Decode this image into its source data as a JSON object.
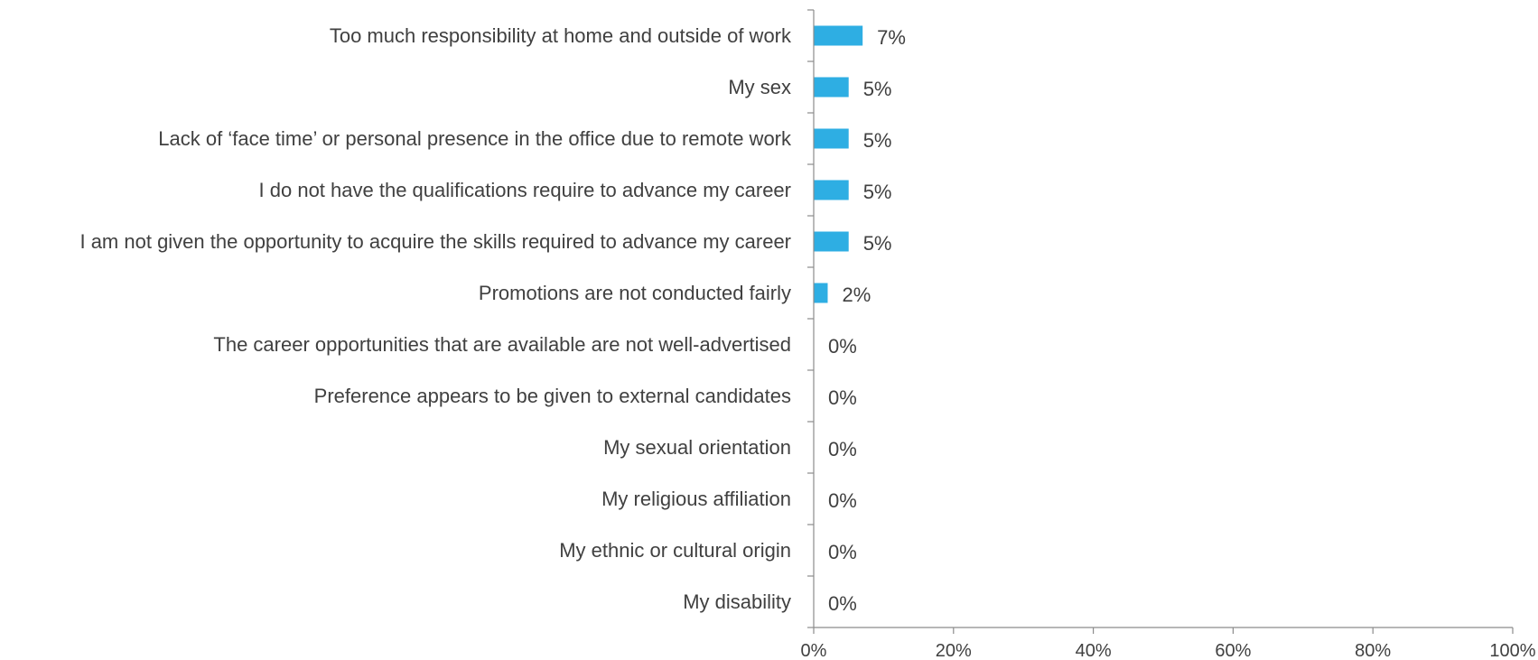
{
  "chart_data": {
    "type": "bar",
    "orientation": "horizontal",
    "categories": [
      "Too much responsibility at home and outside of work",
      "My sex",
      "Lack of ‘face time’ or personal presence in the office due to remote work",
      "I do not have the qualifications require to advance my career",
      "I am not given the opportunity to acquire the skills required to advance my career",
      "Promotions are not conducted fairly",
      "The career opportunities that are available are not well-advertised",
      "Preference appears to be given to external candidates",
      "My sexual orientation",
      "My religious affiliation",
      "My ethnic or cultural origin",
      "My disability"
    ],
    "values": [
      7,
      5,
      5,
      5,
      5,
      2,
      0,
      0,
      0,
      0,
      0,
      0
    ],
    "value_labels": [
      "7%",
      "5%",
      "5%",
      "5%",
      "5%",
      "2%",
      "0%",
      "0%",
      "0%",
      "0%",
      "0%",
      "0%"
    ],
    "xlim": [
      0,
      100
    ],
    "x_ticks": [
      0,
      20,
      40,
      60,
      80,
      100
    ],
    "x_tick_labels": [
      "0%",
      "20%",
      "40%",
      "60%",
      "80%",
      "100%"
    ],
    "bar_color": "#2eaee3",
    "grid": false,
    "legend": "none",
    "title": "",
    "xlabel": "",
    "ylabel": ""
  }
}
